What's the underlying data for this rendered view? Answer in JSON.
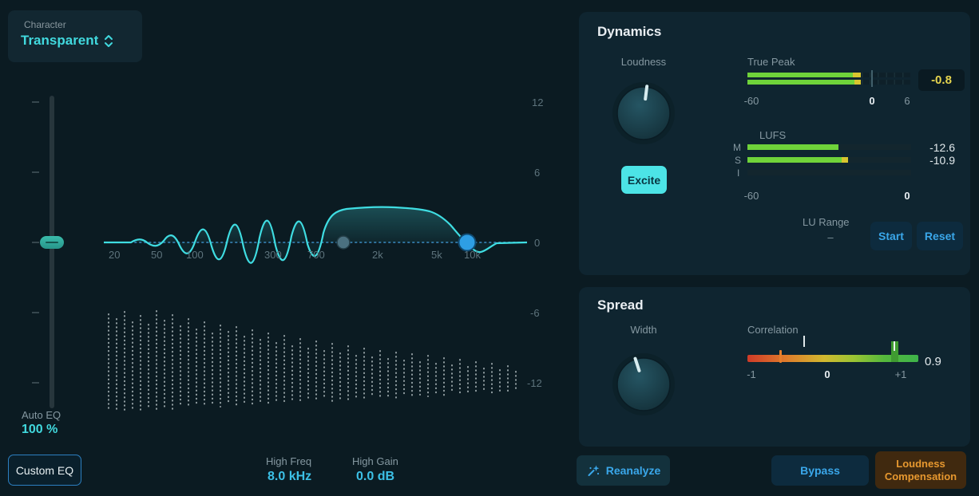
{
  "colors": {
    "accent_cyan": "#41d9de",
    "accent_blue": "#3aa7ea",
    "accent_orange": "#e7982f",
    "meter_green": "#6fd33a",
    "meter_yellow": "#d8c52f",
    "value_yellow": "#e5d44e"
  },
  "character": {
    "label": "Character",
    "value": "Transparent"
  },
  "auto_eq": {
    "label": "Auto EQ",
    "value": "100 %"
  },
  "custom_eq_label": "Custom EQ",
  "eq": {
    "freq_labels": [
      "20",
      "50",
      "100",
      "300",
      "700",
      "2k",
      "5k",
      "10k"
    ],
    "db_labels": [
      "12",
      "6",
      "0",
      "-6",
      "-12"
    ],
    "high_freq": {
      "label": "High Freq",
      "value": "8.0 kHz"
    },
    "high_gain": {
      "label": "High Gain",
      "value": "0.0 dB"
    },
    "spectrum": [
      [
        16,
        284,
        405
      ],
      [
        26,
        290,
        404
      ],
      [
        36,
        281,
        405
      ],
      [
        46,
        294,
        403
      ],
      [
        56,
        286,
        405
      ],
      [
        66,
        297,
        402
      ],
      [
        76,
        280,
        404
      ],
      [
        86,
        292,
        401
      ],
      [
        96,
        285,
        403
      ],
      [
        106,
        299,
        400
      ],
      [
        116,
        290,
        402
      ],
      [
        126,
        303,
        399
      ],
      [
        136,
        294,
        401
      ],
      [
        146,
        308,
        398
      ],
      [
        156,
        298,
        400
      ],
      [
        166,
        306,
        397
      ],
      [
        176,
        300,
        399
      ],
      [
        186,
        312,
        396
      ],
      [
        196,
        304,
        398
      ],
      [
        206,
        316,
        395
      ],
      [
        216,
        308,
        397
      ],
      [
        226,
        320,
        394
      ],
      [
        236,
        311,
        396
      ],
      [
        246,
        324,
        393
      ],
      [
        256,
        315,
        395
      ],
      [
        266,
        327,
        392
      ],
      [
        276,
        318,
        394
      ],
      [
        286,
        330,
        391
      ],
      [
        296,
        321,
        393
      ],
      [
        306,
        333,
        390
      ],
      [
        316,
        324,
        392
      ],
      [
        326,
        336,
        389
      ],
      [
        336,
        327,
        391
      ],
      [
        346,
        338,
        388
      ],
      [
        356,
        330,
        390
      ],
      [
        366,
        340,
        387
      ],
      [
        376,
        332,
        389
      ],
      [
        386,
        342,
        386
      ],
      [
        396,
        334,
        388
      ],
      [
        406,
        344,
        385
      ],
      [
        416,
        336,
        387
      ],
      [
        426,
        346,
        384
      ],
      [
        436,
        339,
        386
      ],
      [
        446,
        348,
        383
      ],
      [
        456,
        341,
        385
      ],
      [
        466,
        350,
        382
      ],
      [
        476,
        344,
        384
      ],
      [
        486,
        352,
        381
      ],
      [
        496,
        346,
        383
      ],
      [
        506,
        354,
        380
      ],
      [
        516,
        349,
        382
      ],
      [
        526,
        356,
        381
      ]
    ]
  },
  "dynamics": {
    "title": "Dynamics",
    "loudness_label": "Loudness",
    "excite_label": "Excite",
    "true_peak": {
      "label": "True Peak",
      "scale_min": "-60",
      "scale_zero": "0",
      "scale_max": "6",
      "value": "-0.8"
    },
    "lufs": {
      "label": "LUFS",
      "channel_m": "M",
      "channel_s": "S",
      "channel_i": "I",
      "m_value": "-12.6",
      "s_value": "-10.9",
      "scale_min": "-60",
      "scale_zero": "0"
    },
    "lu_range": {
      "label": "LU Range",
      "value": "–"
    },
    "start_label": "Start",
    "reset_label": "Reset"
  },
  "spread": {
    "title": "Spread",
    "width_label": "Width",
    "correlation": {
      "label": "Correlation",
      "scale_min": "-1",
      "scale_zero": "0",
      "scale_max": "+1",
      "value": "0.9"
    }
  },
  "footer": {
    "reanalyze_label": "Reanalyze",
    "bypass_label": "Bypass",
    "loudness_comp_line1": "Loudness",
    "loudness_comp_line2": "Compensation"
  }
}
